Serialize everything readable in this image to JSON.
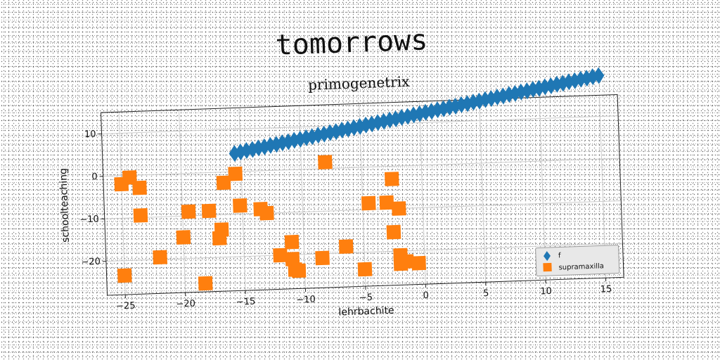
{
  "title": "tomorrows",
  "colors": {
    "series_f": "#1f77b4",
    "series_supramaxilla": "#ff7f0e",
    "grid": "#cccccc"
  },
  "chart_data": {
    "type": "scatter",
    "title": "primogenetrix",
    "xlabel": "lehrbachite",
    "ylabel": "schoolteaching",
    "xlim": [
      -26.5,
      16.5
    ],
    "ylim": [
      -28,
      15
    ],
    "xticks": [
      -25,
      -20,
      -15,
      -10,
      -5,
      0,
      5,
      10,
      15
    ],
    "xtick_labels": [
      "−25",
      "−20",
      "−15",
      "−10",
      "−5",
      "0",
      "5",
      "10",
      "15"
    ],
    "yticks": [
      -20,
      -10,
      0,
      10
    ],
    "ytick_labels": [
      "−20",
      "−10",
      "0",
      "10"
    ],
    "grid": true,
    "legend_position": "lower-right",
    "series": [
      {
        "name": "f",
        "marker": "diamond",
        "points": [
          [
            -15.5,
            4.3
          ],
          [
            -15.0,
            4.6
          ],
          [
            -14.5,
            4.9
          ],
          [
            -14.0,
            5.1
          ],
          [
            -13.5,
            5.4
          ],
          [
            -13.0,
            5.6
          ],
          [
            -12.5,
            5.9
          ],
          [
            -12.0,
            6.1
          ],
          [
            -11.5,
            6.4
          ],
          [
            -11.0,
            6.6
          ],
          [
            -10.5,
            6.9
          ],
          [
            -10.0,
            7.1
          ],
          [
            -9.5,
            7.4
          ],
          [
            -9.0,
            7.6
          ],
          [
            -8.5,
            7.9
          ],
          [
            -8.0,
            8.1
          ],
          [
            -7.5,
            8.4
          ],
          [
            -7.0,
            8.6
          ],
          [
            -6.5,
            8.9
          ],
          [
            -6.0,
            9.1
          ],
          [
            -5.5,
            9.4
          ],
          [
            -5.0,
            9.6
          ],
          [
            -4.5,
            9.9
          ],
          [
            -4.0,
            10.1
          ],
          [
            -3.5,
            10.4
          ],
          [
            -3.0,
            10.6
          ],
          [
            -2.5,
            10.9
          ],
          [
            -2.0,
            11.1
          ],
          [
            -1.5,
            11.4
          ],
          [
            -1.0,
            11.6
          ],
          [
            -0.5,
            11.9
          ],
          [
            0.0,
            12.1
          ],
          [
            0.5,
            12.4
          ],
          [
            1.0,
            12.6
          ],
          [
            1.5,
            12.9
          ],
          [
            2.0,
            13.1
          ],
          [
            2.5,
            13.4
          ],
          [
            3.0,
            13.6
          ],
          [
            3.5,
            13.9
          ],
          [
            4.0,
            14.1
          ],
          [
            4.5,
            14.4
          ],
          [
            5.0,
            14.6
          ],
          [
            5.5,
            14.9
          ],
          [
            6.0,
            15.1
          ],
          [
            6.5,
            15.4
          ],
          [
            7.0,
            15.6
          ],
          [
            7.5,
            15.9
          ],
          [
            8.0,
            16.1
          ],
          [
            8.5,
            16.4
          ],
          [
            9.0,
            16.6
          ],
          [
            9.5,
            16.9
          ],
          [
            10.0,
            17.1
          ],
          [
            10.5,
            17.4
          ],
          [
            11.0,
            17.6
          ],
          [
            11.5,
            17.9
          ],
          [
            12.0,
            18.1
          ],
          [
            12.5,
            18.4
          ],
          [
            13.0,
            18.6
          ],
          [
            13.5,
            18.9
          ],
          [
            14.0,
            19.1
          ],
          [
            14.5,
            19.4
          ],
          [
            15.0,
            19.6
          ]
        ]
      },
      {
        "name": "supramaxilla",
        "marker": "square",
        "points": [
          [
            -25,
            -2
          ],
          [
            -24.3,
            -0.5
          ],
          [
            -23.5,
            -3
          ],
          [
            -23.5,
            -9.5
          ],
          [
            -25,
            -23.5
          ],
          [
            -22,
            -19.5
          ],
          [
            -20,
            -15
          ],
          [
            -19.5,
            -9
          ],
          [
            -18.3,
            -26
          ],
          [
            -17.8,
            -9
          ],
          [
            -17,
            -15.5
          ],
          [
            -16.8,
            -13.5
          ],
          [
            -16.5,
            -2.5
          ],
          [
            -15.5,
            -0.5
          ],
          [
            -15.2,
            -8
          ],
          [
            -13.5,
            -9
          ],
          [
            -13,
            -10
          ],
          [
            -12,
            -20
          ],
          [
            -11,
            -17
          ],
          [
            -11,
            -21
          ],
          [
            -10.8,
            -23.5
          ],
          [
            -10.5,
            -23.8
          ],
          [
            -8.5,
            -21
          ],
          [
            -8,
            1.5
          ],
          [
            -6.5,
            -18.5
          ],
          [
            -5,
            -24
          ],
          [
            -4.5,
            -8.5
          ],
          [
            -3,
            -8.5
          ],
          [
            -2.5,
            -15.5
          ],
          [
            -2.5,
            -3
          ],
          [
            -2,
            -10
          ],
          [
            -2,
            -21
          ],
          [
            -2,
            -23
          ],
          [
            -1.5,
            -22.5
          ],
          [
            -0.5,
            -23
          ]
        ]
      }
    ]
  }
}
